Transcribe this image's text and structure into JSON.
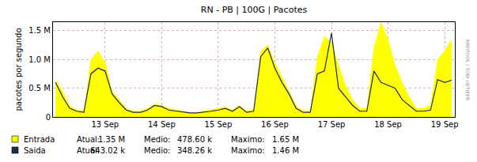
{
  "chart_data": {
    "type": "line",
    "title": "RN - PB | 100G | Pacotes",
    "y_label": "pacotes por segundo",
    "side_text": "RRDTOOL / TOBI OETIKER",
    "x": [
      12.125,
      12.25,
      12.375,
      12.5,
      12.625,
      12.75,
      12.875,
      13.0,
      13.125,
      13.25,
      13.375,
      13.5,
      13.625,
      13.75,
      13.875,
      14.0,
      14.125,
      14.25,
      14.375,
      14.5,
      14.625,
      14.75,
      14.875,
      15.0,
      15.125,
      15.25,
      15.375,
      15.5,
      15.625,
      15.75,
      15.875,
      16.0,
      16.125,
      16.25,
      16.375,
      16.5,
      16.625,
      16.75,
      16.875,
      17.0,
      17.125,
      17.25,
      17.375,
      17.5,
      17.625,
      17.75,
      17.875,
      18.0,
      18.125,
      18.25,
      18.375,
      18.5,
      18.625,
      18.75,
      18.875,
      19.0,
      19.125
    ],
    "series": [
      {
        "name": "Entrada",
        "type": "area",
        "color": "#ffff00",
        "values": [
          650000,
          450000,
          200000,
          120000,
          100000,
          1000000,
          1150000,
          950000,
          450000,
          300000,
          150000,
          100000,
          100000,
          150000,
          220000,
          200000,
          150000,
          120000,
          100000,
          80000,
          80000,
          100000,
          120000,
          150000,
          180000,
          120000,
          200000,
          100000,
          120000,
          1150000,
          1250000,
          950000,
          700000,
          450000,
          200000,
          100000,
          100000,
          1050000,
          1400000,
          1300000,
          900000,
          550000,
          300000,
          150000,
          150000,
          1200000,
          1650000,
          1350000,
          900000,
          600000,
          350000,
          150000,
          150000,
          200000,
          1000000,
          1150000,
          1350000
        ],
        "stats": [
          {
            "label": "Atual:",
            "text": "1.35 M"
          },
          {
            "label": "Medio:",
            "text": "478.60 k"
          },
          {
            "label": "Maximo:",
            "text": "1.65 M"
          }
        ]
      },
      {
        "name": "Saida",
        "type": "line",
        "color": "#1c2a50",
        "values": [
          600000,
          350000,
          150000,
          100000,
          80000,
          750000,
          850000,
          800000,
          400000,
          250000,
          120000,
          80000,
          80000,
          120000,
          200000,
          180000,
          120000,
          100000,
          80000,
          70000,
          70000,
          80000,
          100000,
          120000,
          150000,
          100000,
          180000,
          80000,
          100000,
          1050000,
          1200000,
          850000,
          600000,
          400000,
          150000,
          80000,
          80000,
          750000,
          800000,
          1460000,
          500000,
          350000,
          200000,
          100000,
          100000,
          800000,
          600000,
          550000,
          500000,
          300000,
          200000,
          100000,
          100000,
          120000,
          650000,
          600000,
          640000
        ],
        "stats": [
          {
            "label": "Atual:",
            "text": "643.02 k"
          },
          {
            "label": "Medio:",
            "text": "348.26 k"
          },
          {
            "label": "Maximo:",
            "text": "1.46 M"
          }
        ]
      }
    ],
    "xlim": [
      12.08,
      19.18
    ],
    "xticks": [
      {
        "value": 13,
        "label": "13 Sep"
      },
      {
        "value": 14,
        "label": "14 Sep"
      },
      {
        "value": 15,
        "label": "15 Sep"
      },
      {
        "value": 16,
        "label": "16 Sep"
      },
      {
        "value": 17,
        "label": "17 Sep"
      },
      {
        "value": 18,
        "label": "18 Sep"
      },
      {
        "value": 19,
        "label": "19 Sep"
      }
    ],
    "ylim": [
      0,
      1650000
    ],
    "yticks": [
      0,
      {
        "value": 500000,
        "label": "0.5 M"
      },
      {
        "value": 1000000,
        "label": "1.0 M"
      },
      {
        "value": 1500000,
        "label": "1.5 M"
      }
    ],
    "grid": true
  }
}
